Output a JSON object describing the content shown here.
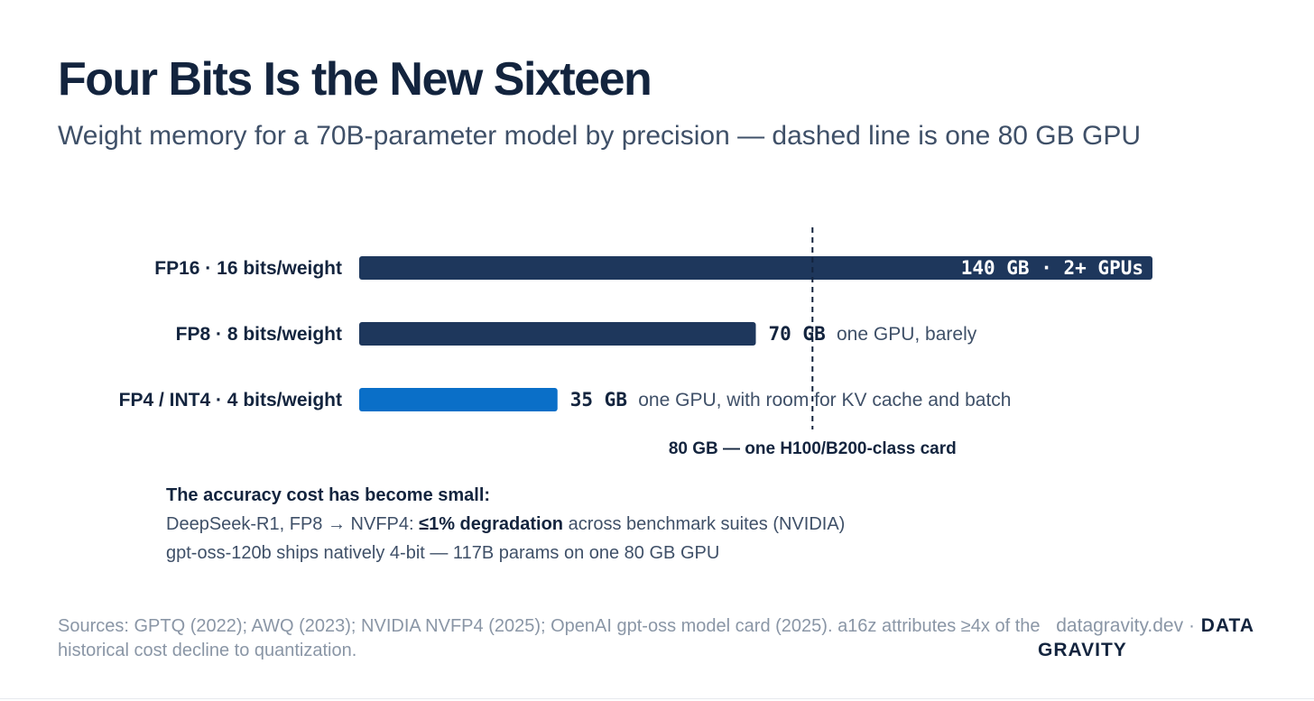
{
  "title": "Four Bits Is the New Sixteen",
  "subtitle": "Weight memory for a 70B-parameter model by precision — dashed line is one 80 GB GPU",
  "chart_data": {
    "type": "bar",
    "orientation": "horizontal",
    "categories": [
      "FP16 · 16 bits/weight",
      "FP8 · 8 bits/weight",
      "FP4 / INT4 · 4 bits/weight"
    ],
    "values": [
      140,
      70,
      35
    ],
    "value_labels": [
      "140 GB · 2+ GPUs",
      "70 GB",
      "35 GB"
    ],
    "annotations": [
      "",
      "one GPU, barely",
      "one GPU, with room for KV cache and batch"
    ],
    "colors": [
      "#1e375c",
      "#1e375c",
      "#0a6fc8"
    ],
    "reference_line": {
      "value": 80,
      "label": "80 GB — one H100/B200-class card",
      "style": "dashed"
    },
    "xlim": [
      0,
      140
    ],
    "grid": false
  },
  "notes": {
    "heading": "The accuracy cost has become small:",
    "line1_pre": "DeepSeek-R1, FP8 → NVFP4: ",
    "line1_bold": "≤1% degradation",
    "line1_post": " across benchmark suites (NVIDIA)",
    "line2": "gpt-oss-120b ships natively 4-bit — 117B params on one 80 GB GPU"
  },
  "footer": {
    "sources": "Sources: GPTQ (2022); AWQ (2023); NVIDIA NVFP4 (2025); OpenAI gpt-oss model card (2025). a16z attributes ≥4x of the historical cost decline to quantization.",
    "site": "datagravity.dev ·",
    "brand_line1": "DATA",
    "brand_line2": "GRAVITY"
  }
}
